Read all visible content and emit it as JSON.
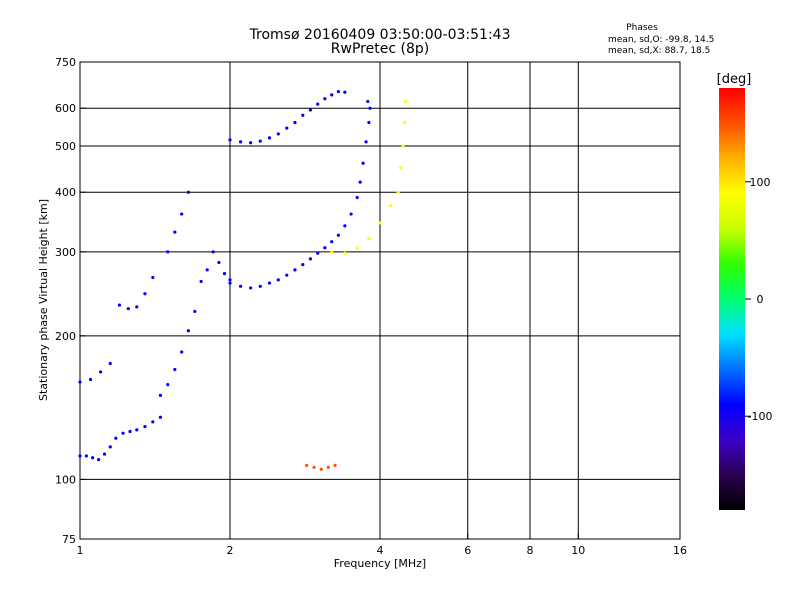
{
  "chart_data": {
    "type": "scatter",
    "title": "Tromsø 20160409 03:50:00-03:51:43",
    "subtitle": "RwPretec (8p)",
    "xlabel": "Frequency [MHz]",
    "ylabel": "Stationary phase Virtual Height [km]",
    "x_scale": "log",
    "y_scale": "log",
    "xlim": [
      1,
      16
    ],
    "ylim": [
      75,
      750
    ],
    "x_ticks": [
      1,
      2,
      4,
      6,
      8,
      10,
      16
    ],
    "x_ticklabels": [
      "1",
      "2",
      "4",
      "6",
      "8",
      "10",
      "16"
    ],
    "x_gridlines": [
      2,
      4,
      6,
      8,
      10
    ],
    "y_ticks": [
      75,
      100,
      200,
      300,
      400,
      500,
      600,
      750
    ],
    "y_ticklabels": [
      "75",
      "100",
      "200",
      "300",
      "400",
      "500",
      "600",
      "750"
    ],
    "y_gridlines": [
      100,
      200,
      300,
      400,
      500,
      600
    ],
    "grid": true,
    "color_variable": "phase (deg)",
    "phase_stats": {
      "heading": "Phases",
      "line_o": "mean, sd,O: -99.8, 14.5",
      "line_x": "mean, sd,X:  88.7, 18.5"
    },
    "colorbar": {
      "label": "[deg]",
      "range": [
        -180,
        180
      ],
      "ticks": [
        100,
        0,
        -100
      ],
      "ticklabels": [
        "100",
        "0",
        "-100"
      ],
      "colors": [
        "#000000",
        "#2a0050",
        "#3c00c8",
        "#0000ff",
        "#0070ff",
        "#00e0ff",
        "#00ff70",
        "#30ff00",
        "#c8ff00",
        "#ffff00",
        "#ffb000",
        "#ff5000",
        "#ff0000"
      ]
    },
    "series": [
      {
        "trace": "low_ledge_O",
        "phase": -100,
        "points": [
          [
            1.0,
            112
          ],
          [
            1.03,
            112
          ],
          [
            1.06,
            111
          ],
          [
            1.09,
            110
          ],
          [
            1.12,
            113
          ],
          [
            1.15,
            117
          ],
          [
            1.18,
            122
          ],
          [
            1.22,
            125
          ],
          [
            1.26,
            126
          ],
          [
            1.3,
            127
          ],
          [
            1.35,
            129
          ],
          [
            1.4,
            132
          ],
          [
            1.45,
            135
          ]
        ]
      },
      {
        "trace": "mid_cluster_O",
        "phase": -100,
        "points": [
          [
            1.45,
            150
          ],
          [
            1.5,
            158
          ],
          [
            1.55,
            170
          ],
          [
            1.6,
            185
          ],
          [
            1.65,
            205
          ],
          [
            1.7,
            225
          ],
          [
            1.75,
            260
          ],
          [
            1.8,
            275
          ],
          [
            1.85,
            300
          ],
          [
            1.9,
            285
          ],
          [
            1.95,
            270
          ],
          [
            2.0,
            262
          ]
        ]
      },
      {
        "trace": "rising_O",
        "phase": -100,
        "points": [
          [
            1.0,
            160
          ],
          [
            1.05,
            162
          ],
          [
            1.1,
            168
          ],
          [
            1.15,
            175
          ],
          [
            1.2,
            232
          ],
          [
            1.25,
            228
          ],
          [
            1.3,
            230
          ],
          [
            1.35,
            245
          ],
          [
            1.4,
            265
          ],
          [
            1.5,
            300
          ],
          [
            1.55,
            330
          ],
          [
            1.6,
            360
          ],
          [
            1.65,
            400
          ]
        ]
      },
      {
        "trace": "F_low_O",
        "phase": -100,
        "points": [
          [
            2.0,
            258
          ],
          [
            2.1,
            254
          ],
          [
            2.2,
            252
          ],
          [
            2.3,
            254
          ],
          [
            2.4,
            258
          ],
          [
            2.5,
            262
          ],
          [
            2.6,
            268
          ],
          [
            2.7,
            275
          ],
          [
            2.8,
            282
          ],
          [
            2.9,
            290
          ],
          [
            3.0,
            298
          ],
          [
            3.1,
            306
          ]
        ]
      },
      {
        "trace": "F_cusp_O",
        "phase": -100,
        "points": [
          [
            3.2,
            315
          ],
          [
            3.3,
            325
          ],
          [
            3.4,
            340
          ],
          [
            3.5,
            360
          ],
          [
            3.6,
            390
          ],
          [
            3.65,
            420
          ],
          [
            3.7,
            460
          ],
          [
            3.75,
            510
          ],
          [
            3.8,
            560
          ],
          [
            3.82,
            600
          ],
          [
            3.78,
            620
          ]
        ]
      },
      {
        "trace": "F_upper_O",
        "phase": -100,
        "points": [
          [
            2.0,
            515
          ],
          [
            2.1,
            510
          ],
          [
            2.2,
            508
          ],
          [
            2.3,
            512
          ],
          [
            2.4,
            520
          ],
          [
            2.5,
            530
          ],
          [
            2.6,
            545
          ],
          [
            2.7,
            560
          ],
          [
            2.8,
            580
          ],
          [
            2.9,
            595
          ],
          [
            3.0,
            612
          ],
          [
            3.1,
            628
          ],
          [
            3.2,
            640
          ],
          [
            3.3,
            650
          ],
          [
            3.4,
            648
          ]
        ]
      },
      {
        "trace": "F_X",
        "phase": 95,
        "points": [
          [
            3.2,
            300
          ],
          [
            3.4,
            298
          ],
          [
            3.6,
            305
          ],
          [
            3.8,
            320
          ],
          [
            4.0,
            345
          ],
          [
            4.2,
            375
          ],
          [
            4.35,
            400
          ],
          [
            4.4,
            450
          ],
          [
            4.45,
            500
          ],
          [
            4.48,
            560
          ],
          [
            4.5,
            620
          ]
        ]
      },
      {
        "trace": "E_sporadic",
        "phase": 150,
        "points": [
          [
            2.85,
            107
          ],
          [
            2.95,
            106
          ],
          [
            3.05,
            105
          ],
          [
            3.15,
            106
          ],
          [
            3.25,
            107
          ]
        ]
      }
    ]
  }
}
